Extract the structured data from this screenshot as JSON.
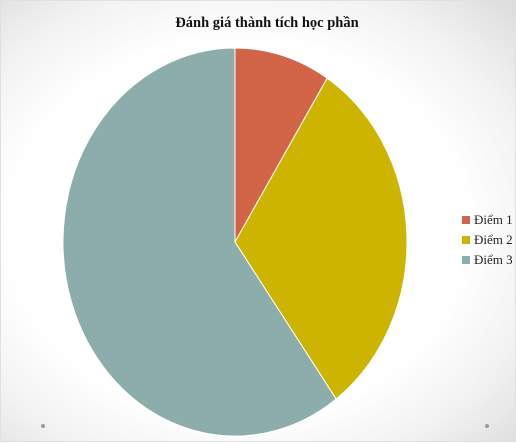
{
  "chart_data": {
    "type": "pie",
    "title": "Đánh giá thành tích học phần",
    "categories": [
      "Điểm 1",
      "Điểm 2",
      "Điểm 3"
    ],
    "values": [
      9,
      31,
      60
    ],
    "colors": [
      "#D26548",
      "#CDB400",
      "#8DADAD"
    ],
    "legend_position": "right",
    "start_angle": "12 o'clock, clockwise"
  }
}
